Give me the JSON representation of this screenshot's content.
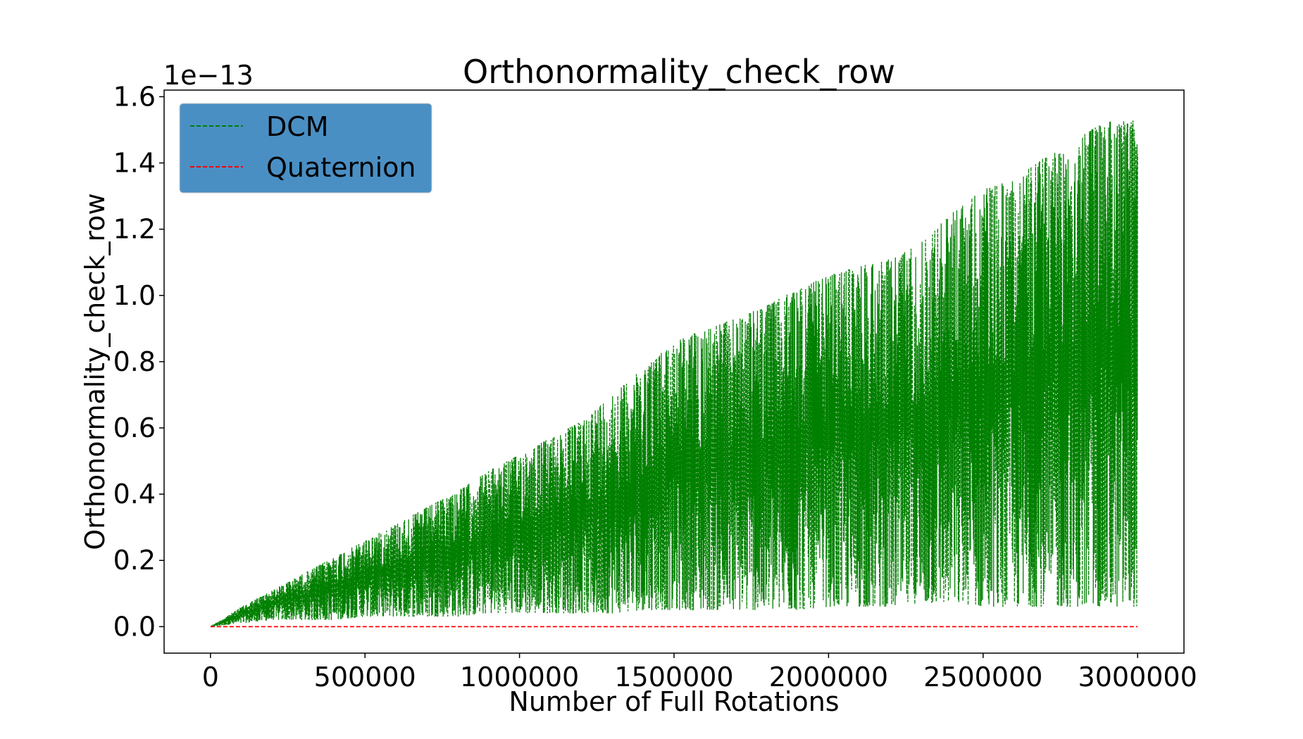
{
  "chart_data": {
    "type": "line",
    "title": "Orthonormality_check_row",
    "xlabel": "Number of Full Rotations",
    "ylabel": "Orthonormality_check_row",
    "y_offset_label": "1e−13",
    "xlim": [
      -150000,
      3150000
    ],
    "ylim": [
      -0.08,
      1.62
    ],
    "x_ticks": [
      0,
      500000,
      1000000,
      1500000,
      2000000,
      2500000,
      3000000
    ],
    "x_tick_labels": [
      "0",
      "500000",
      "1000000",
      "1500000",
      "2000000",
      "2500000",
      "3000000"
    ],
    "y_ticks": [
      0.0,
      0.2,
      0.4,
      0.6,
      0.8,
      1.0,
      1.2,
      1.4,
      1.6
    ],
    "y_tick_labels": [
      "0.0",
      "0.2",
      "0.4",
      "0.6",
      "0.8",
      "1.0",
      "1.2",
      "1.4",
      "1.6"
    ],
    "grid": false,
    "legend_position": "top-left",
    "legend_bg": "#4a8fc4",
    "series": [
      {
        "name": "DCM",
        "color": "#008000",
        "linestyle": "dashed",
        "x": [
          0,
          100000,
          200000,
          300000,
          400000,
          500000,
          600000,
          700000,
          800000,
          900000,
          1000000,
          1100000,
          1200000,
          1300000,
          1400000,
          1500000,
          1600000,
          1700000,
          1800000,
          1900000,
          2000000,
          2100000,
          2200000,
          2300000,
          2400000,
          2500000,
          2600000,
          2700000,
          2800000,
          2900000,
          3000000
        ],
        "y_upper": [
          0.0,
          0.06,
          0.11,
          0.16,
          0.21,
          0.26,
          0.31,
          0.36,
          0.41,
          0.47,
          0.52,
          0.57,
          0.62,
          0.7,
          0.78,
          0.86,
          0.9,
          0.93,
          0.97,
          1.02,
          1.06,
          1.09,
          1.11,
          1.16,
          1.25,
          1.32,
          1.35,
          1.42,
          1.47,
          1.53,
          1.53
        ],
        "y_lower": [
          0.0,
          0.01,
          0.02,
          0.02,
          0.02,
          0.03,
          0.03,
          0.03,
          0.03,
          0.04,
          0.04,
          0.04,
          0.04,
          0.04,
          0.05,
          0.05,
          0.05,
          0.05,
          0.05,
          0.05,
          0.06,
          0.06,
          0.06,
          0.07,
          0.07,
          0.06,
          0.06,
          0.06,
          0.06,
          0.06,
          0.06
        ]
      },
      {
        "name": "Quaternion",
        "color": "#ff0000",
        "linestyle": "dashed",
        "x": [
          0,
          3000000
        ],
        "y": [
          0.0,
          0.0
        ]
      }
    ]
  }
}
